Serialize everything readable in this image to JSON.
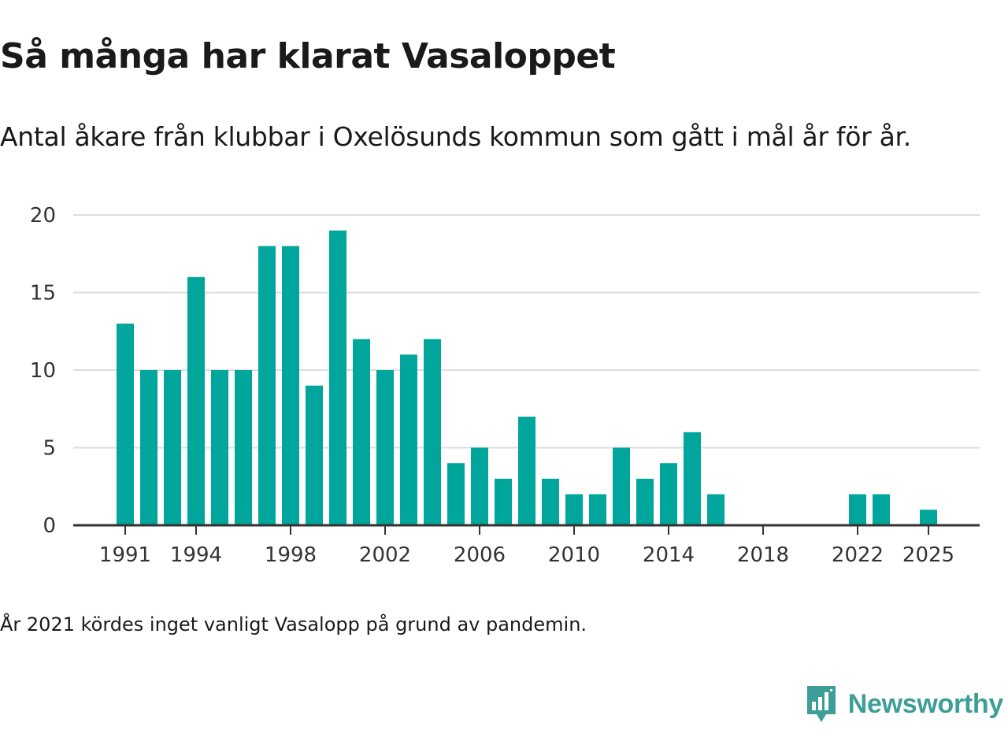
{
  "header": {
    "title": "Så många har klarat Vasaloppet",
    "subtitle": "Antal åkare från klubbar i Oxelösunds kommun som gått i mål år för år."
  },
  "chart_data": {
    "type": "bar",
    "title": "Så många har klarat Vasaloppet",
    "xlabel": "",
    "ylabel": "",
    "ylim": [
      0,
      20
    ],
    "yticks": [
      0,
      5,
      10,
      15,
      20
    ],
    "xticks": [
      1991,
      1994,
      1998,
      2002,
      2006,
      2010,
      2014,
      2018,
      2022,
      2025
    ],
    "grid": true,
    "color": "#00a59b",
    "categories": [
      1991,
      1992,
      1993,
      1994,
      1995,
      1996,
      1997,
      1998,
      1999,
      2000,
      2001,
      2002,
      2003,
      2004,
      2005,
      2006,
      2007,
      2008,
      2009,
      2010,
      2011,
      2012,
      2013,
      2014,
      2015,
      2016,
      2017,
      2018,
      2019,
      2020,
      2021,
      2022,
      2023,
      2024,
      2025
    ],
    "values": [
      13,
      10,
      10,
      16,
      10,
      10,
      18,
      18,
      9,
      19,
      12,
      10,
      11,
      12,
      4,
      5,
      3,
      7,
      3,
      2,
      2,
      5,
      3,
      4,
      6,
      2,
      0,
      0,
      0,
      0,
      null,
      2,
      2,
      0,
      1
    ]
  },
  "footer": {
    "note": "År 2021 kördes inget vanligt Vasalopp på grund av pandemin.",
    "brand": "Newsworthy",
    "brand_color": "#3d9e98"
  }
}
